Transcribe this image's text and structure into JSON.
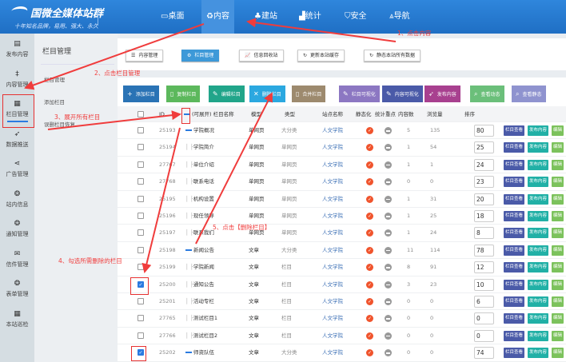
{
  "header": {
    "brand": "国微全媒体站群",
    "slogan": "十年知名品牌，易用、强大、永久",
    "nav": [
      {
        "icon": "desktop-icon",
        "glyph": "▭",
        "label": "桌面"
      },
      {
        "icon": "recycle-icon",
        "glyph": "♻",
        "label": "内容",
        "active": true
      },
      {
        "icon": "tree-icon",
        "glyph": "♣",
        "label": "建站"
      },
      {
        "icon": "chart-icon",
        "glyph": "▟",
        "label": "统计"
      },
      {
        "icon": "shield-icon",
        "glyph": "⛉",
        "label": "安全"
      },
      {
        "icon": "road-icon",
        "glyph": "⩓",
        "label": "导航"
      }
    ]
  },
  "sidebar": [
    {
      "icon": "file-icon",
      "glyph": "▤",
      "label": "发布内容"
    },
    {
      "icon": "content-icon",
      "glyph": "‡",
      "label": "内容管理"
    },
    {
      "icon": "grid-icon",
      "glyph": "▦",
      "label": "栏目管理",
      "active": true
    },
    {
      "icon": "send-icon",
      "glyph": "➶",
      "label": "数据推送"
    },
    {
      "icon": "share-icon",
      "glyph": "⋖",
      "label": "广告管理"
    },
    {
      "icon": "support-icon",
      "glyph": "❂",
      "label": "站内信息"
    },
    {
      "icon": "support-icon",
      "glyph": "❂",
      "label": "通知管理"
    },
    {
      "icon": "envelope-icon",
      "glyph": "✉",
      "label": "信件管理"
    },
    {
      "icon": "support-icon",
      "glyph": "❂",
      "label": "表单管理"
    },
    {
      "icon": "windows-icon",
      "glyph": "▦",
      "label": "本站巡检"
    }
  ],
  "submenu": {
    "title": "栏目管理",
    "items": [
      "栏目管理",
      "添加栏目",
      "误删栏目恢复"
    ]
  },
  "toolbar": [
    {
      "glyph": "☰",
      "label": "内容管理"
    },
    {
      "glyph": "⚙",
      "label": "栏目管理",
      "active": true
    },
    {
      "glyph": "📈",
      "label": "信息回收站"
    },
    {
      "glyph": "↻",
      "label": "更新本站缓存"
    },
    {
      "glyph": "↻",
      "label": "静态本站所有数据"
    }
  ],
  "actions": [
    {
      "glyph": "+",
      "label": "添加栏目",
      "color": "#2a73b5"
    },
    {
      "glyph": "▯",
      "label": "复制栏目",
      "color": "#5cb85c"
    },
    {
      "glyph": "✎",
      "label": "编辑栏目",
      "color": "#21a58a"
    },
    {
      "glyph": "✕",
      "label": "删除栏目",
      "color": "#2ba8e0"
    },
    {
      "glyph": "▯",
      "label": "合并栏目",
      "color": "#9d8a6e"
    },
    {
      "glyph": "✎",
      "label": "栏目可视化",
      "color": "#8c77c2"
    },
    {
      "glyph": "✎",
      "label": "内容可视化",
      "color": "#4a5aa8"
    },
    {
      "glyph": "➶",
      "label": "发布内容",
      "color": "#a8408f"
    },
    {
      "glyph": "⌕",
      "label": "查看动态",
      "color": "#6bbf7a"
    },
    {
      "glyph": "⌕",
      "label": "查看静态",
      "color": "#8f93cf"
    }
  ],
  "table": {
    "headers": {
      "id": "ID",
      "expand": "(可展开) 栏目名称",
      "model": "模型",
      "type": "类型",
      "site": "站点名称",
      "static": "静态化",
      "stat": "统计重点",
      "count": "内容数",
      "views": "浏览量",
      "order": "排序"
    },
    "row_buttons": [
      "栏目查看",
      "发布内容",
      "编辑"
    ],
    "rows": [
      {
        "id": "25193",
        "name": "学院概况",
        "top": true,
        "model": "单网页",
        "type": "大分类",
        "site": "人文学院",
        "count": "5",
        "views": "135",
        "order": "80"
      },
      {
        "id": "25194",
        "name": "学院简介",
        "model": "单网页",
        "type": "单网页",
        "site": "人文学院",
        "count": "1",
        "views": "54",
        "order": "25"
      },
      {
        "id": "27767",
        "name": "单位介绍",
        "model": "单网页",
        "type": "单网页",
        "site": "人文学院",
        "count": "1",
        "views": "1",
        "order": "24"
      },
      {
        "id": "27768",
        "name": "联系电话",
        "model": "单网页",
        "type": "单网页",
        "site": "人文学院",
        "count": "0",
        "views": "0",
        "order": "23"
      },
      {
        "id": "25195",
        "name": "机构设置",
        "model": "单网页",
        "type": "单网页",
        "site": "人文学院",
        "count": "1",
        "views": "31",
        "order": "20"
      },
      {
        "id": "25196",
        "name": "现任领导",
        "model": "单网页",
        "type": "单网页",
        "site": "人文学院",
        "count": "1",
        "views": "25",
        "order": "18"
      },
      {
        "id": "25197",
        "name": "联系我们",
        "model": "单网页",
        "type": "单网页",
        "site": "人文学院",
        "count": "1",
        "views": "24",
        "order": "8"
      },
      {
        "id": "25198",
        "name": "新闻公告",
        "top": true,
        "model": "文章",
        "type": "大分类",
        "site": "人文学院",
        "count": "11",
        "views": "114",
        "order": "78"
      },
      {
        "id": "25199",
        "name": "学院新闻",
        "model": "文章",
        "type": "栏目",
        "site": "人文学院",
        "count": "8",
        "views": "91",
        "order": "12"
      },
      {
        "id": "25200",
        "name": "通知公告",
        "checked": true,
        "model": "文章",
        "type": "栏目",
        "site": "人文学院",
        "count": "3",
        "views": "23",
        "order": "10"
      },
      {
        "id": "25201",
        "name": "活动专栏",
        "model": "文章",
        "type": "栏目",
        "site": "人文学院",
        "count": "0",
        "views": "0",
        "order": "6"
      },
      {
        "id": "27765",
        "name": "测试栏目1",
        "model": "文章",
        "type": "栏目",
        "site": "人文学院",
        "count": "0",
        "views": "0",
        "order": "0"
      },
      {
        "id": "27766",
        "name": "测试栏目2",
        "model": "文章",
        "type": "栏目",
        "site": "人文学院",
        "count": "0",
        "views": "0",
        "order": "0"
      },
      {
        "id": "25202",
        "name": "师资队伍",
        "top": true,
        "checked": true,
        "model": "文章",
        "type": "大分类",
        "site": "人文学院",
        "count": "0",
        "views": "0",
        "order": "74"
      }
    ]
  },
  "annotations": {
    "a1": "1、点击内容",
    "a2": "2、点击栏目管理",
    "a3": "3、展开所有栏目",
    "a4": "4、勾选所需删除的栏目",
    "a5": "5、点击【删除栏目】",
    "color": "#f03c3c"
  }
}
